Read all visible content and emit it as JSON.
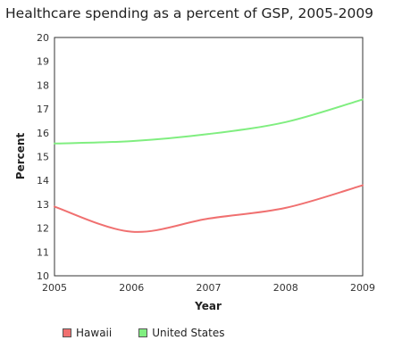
{
  "title": "Healthcare spending as a percent of GSP, 2005-2009",
  "chart_data": {
    "type": "line",
    "title": "Healthcare spending as a percent of GSP, 2005-2009",
    "xlabel": "Year",
    "ylabel": "Percent",
    "x": [
      2005,
      2006,
      2007,
      2008,
      2009
    ],
    "xlim": [
      2005,
      2009
    ],
    "ylim": [
      10,
      20
    ],
    "yticks": [
      10,
      11,
      12,
      13,
      14,
      15,
      16,
      17,
      18,
      19,
      20
    ],
    "grid": false,
    "legend_position": "bottom-left",
    "series": [
      {
        "name": "Hawaii",
        "color": "#f07070",
        "values": [
          12.9,
          11.85,
          12.4,
          12.85,
          13.8
        ]
      },
      {
        "name": "United States",
        "color": "#80ee80",
        "values": [
          15.55,
          15.65,
          15.95,
          16.45,
          17.4
        ]
      }
    ]
  }
}
